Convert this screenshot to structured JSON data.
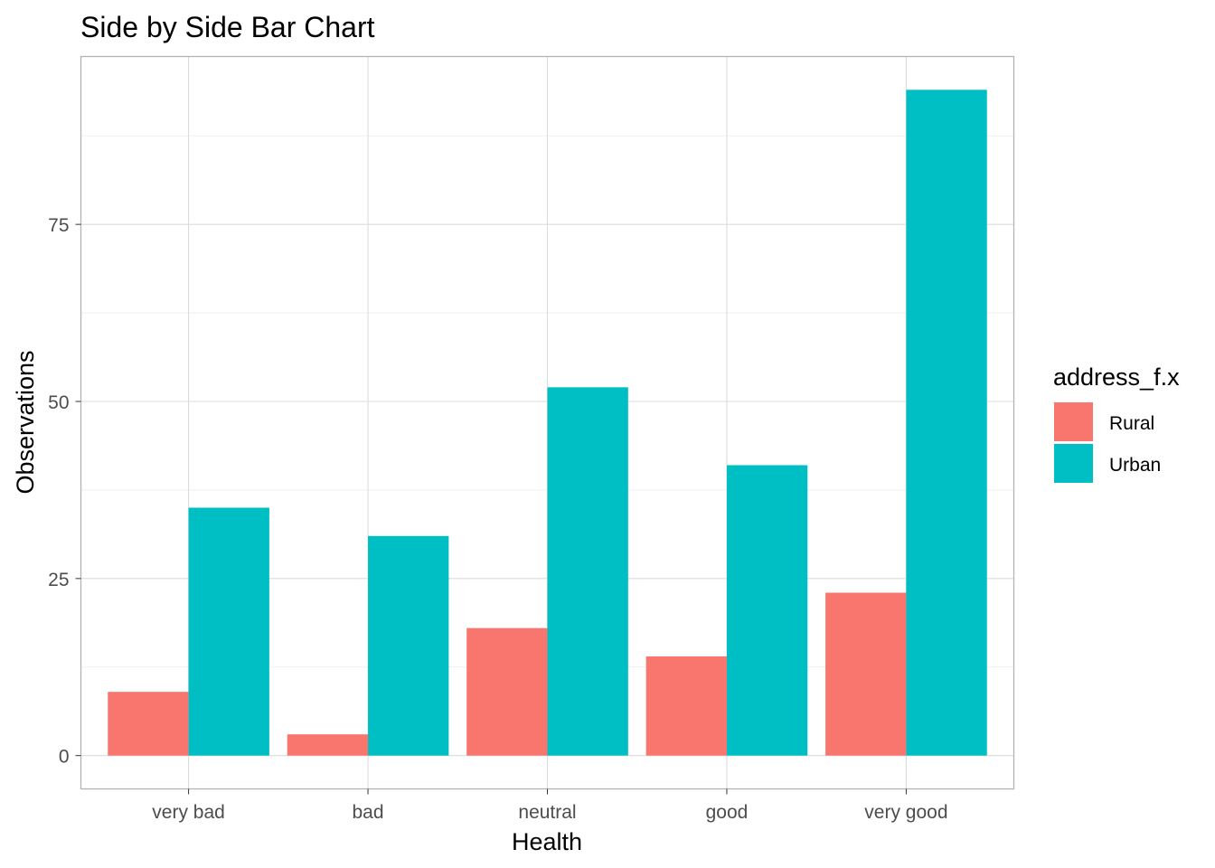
{
  "chart_data": {
    "type": "bar",
    "title": "Side by Side Bar Chart",
    "xlabel": "Health",
    "ylabel": "Observations",
    "categories": [
      "very bad",
      "bad",
      "neutral",
      "good",
      "very good"
    ],
    "series": [
      {
        "name": "Rural",
        "color": "#F8766D",
        "values": [
          9,
          3,
          18,
          14,
          23
        ]
      },
      {
        "name": "Urban",
        "color": "#00BFC4",
        "values": [
          35,
          31,
          52,
          41,
          94
        ]
      }
    ],
    "ylim": [
      -4.7,
      98.7
    ],
    "y_ticks": [
      0,
      25,
      50,
      75
    ],
    "y_tick_labels": [
      "0",
      "25",
      "50",
      "75"
    ],
    "grid": true,
    "legend": {
      "title": "address_f.x",
      "position": "right"
    }
  }
}
